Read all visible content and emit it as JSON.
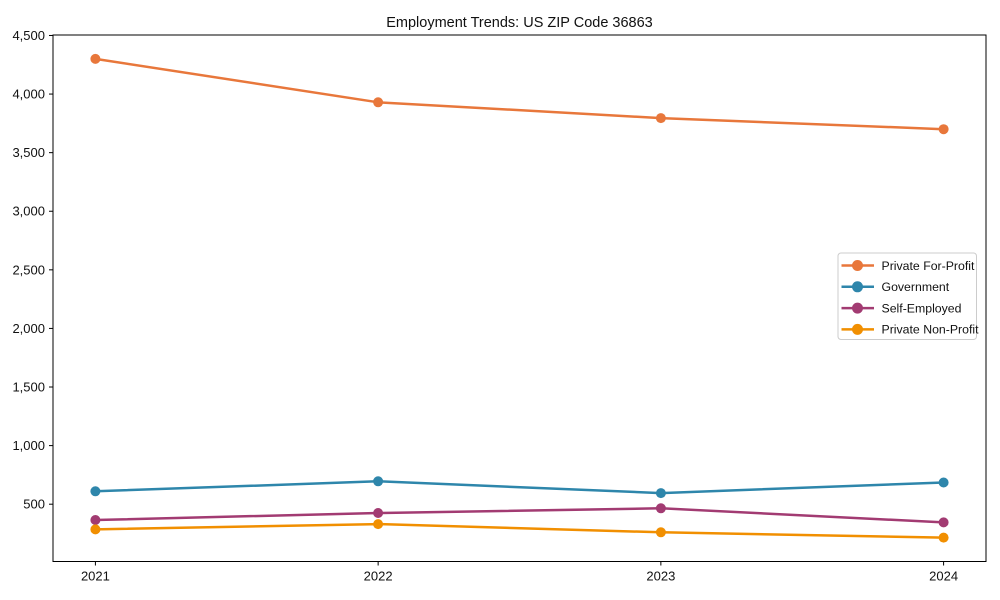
{
  "chart_data": {
    "type": "line",
    "title": "Employment Trends: US ZIP Code 36863",
    "xlabel": "",
    "ylabel": "",
    "categories": [
      "2021",
      "2022",
      "2023",
      "2024"
    ],
    "series": [
      {
        "name": "Private For-Profit",
        "color": "#E8773B",
        "values": [
          4300,
          3930,
          3795,
          3700
        ]
      },
      {
        "name": "Government",
        "color": "#2E86AB",
        "values": [
          610,
          695,
          595,
          685
        ]
      },
      {
        "name": "Self-Employed",
        "color": "#A23B72",
        "values": [
          365,
          425,
          465,
          345
        ]
      },
      {
        "name": "Private Non-Profit",
        "color": "#F18F01",
        "values": [
          285,
          330,
          260,
          215
        ]
      }
    ],
    "yticks": [
      500,
      1000,
      1500,
      2000,
      2500,
      3000,
      3500,
      4000,
      4500
    ],
    "ytick_labels": [
      "500",
      "1,000",
      "1,500",
      "2,000",
      "2,500",
      "3,000",
      "3,500",
      "4,000",
      "4,500"
    ],
    "ylim": [
      11,
      4504
    ],
    "grid": false,
    "legend_position": "center-right",
    "marker": "circle",
    "background_color": "#ffffff",
    "spine_color": "#000000",
    "legend_border_color": "#cccccc"
  }
}
